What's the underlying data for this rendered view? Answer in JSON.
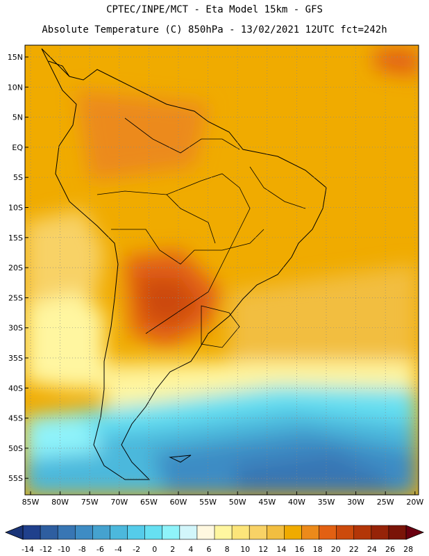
{
  "header": {
    "line1": "CPTEC/INPE/MCT  -  Eta Model 15km - GFS",
    "line2": "Absolute Temperature (C) 850hPa - 13/02/2021 12UTC fct=242h"
  },
  "map": {
    "lat_labels": [
      "15N",
      "10N",
      "5N",
      "EQ",
      "5S",
      "10S",
      "15S",
      "20S",
      "25S",
      "30S",
      "35S",
      "40S",
      "45S",
      "50S",
      "55S"
    ],
    "lon_labels": [
      "85W",
      "80W",
      "75W",
      "70W",
      "65W",
      "60W",
      "55W",
      "50W",
      "45W",
      "40W",
      "35W",
      "30W",
      "25W",
      "20W"
    ],
    "field": "temperature-850hPa"
  },
  "colorbar": {
    "labels": [
      "-14",
      "-12",
      "-10",
      "-8",
      "-6",
      "-4",
      "-2",
      "0",
      "2",
      "4",
      "6",
      "8",
      "10",
      "12",
      "14",
      "16",
      "18",
      "20",
      "22",
      "24",
      "26",
      "28"
    ],
    "colors": [
      "#20408c",
      "#2e5ea0",
      "#3876b4",
      "#3e8cc4",
      "#45a2cf",
      "#4cb8dc",
      "#55ccea",
      "#66e0f2",
      "#8ff3fa",
      "#d2f6fb",
      "#fff8e0",
      "#fff6a0",
      "#fce57a",
      "#f8d266",
      "#f2be40",
      "#f0ab00",
      "#ec8a1a",
      "#e26012",
      "#cc4a0c",
      "#b33608",
      "#962308",
      "#7a1408",
      "#7a1408"
    ]
  }
}
